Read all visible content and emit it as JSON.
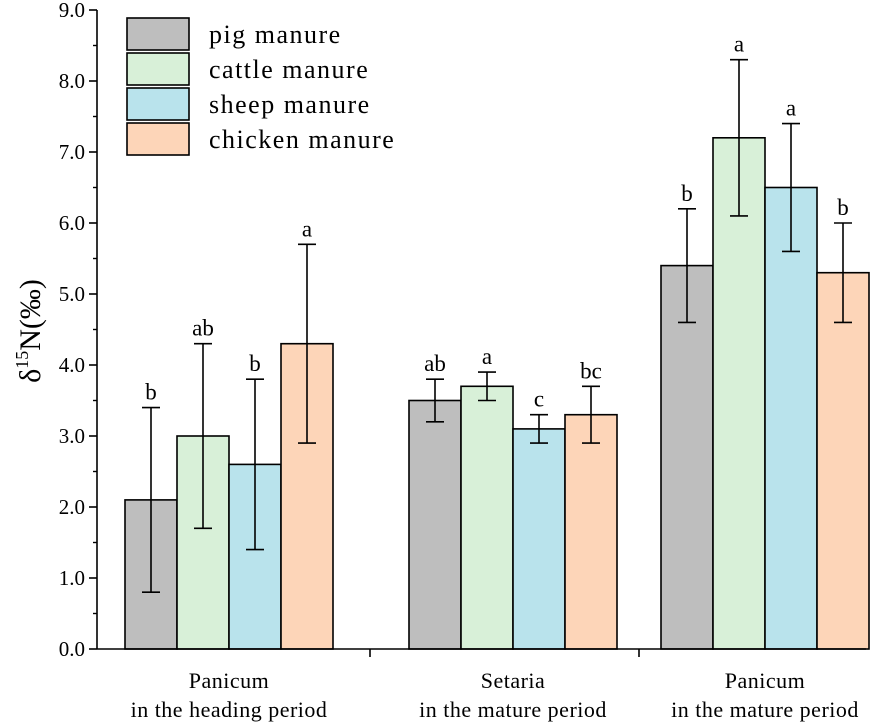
{
  "chart_data": {
    "type": "bar",
    "ylabel_main": "δ",
    "ylabel_sup": "15",
    "ylabel_rest": "N(‰)",
    "ylim": [
      0,
      9
    ],
    "yticks": [
      "0.0",
      "1.0",
      "2.0",
      "3.0",
      "4.0",
      "5.0",
      "6.0",
      "7.0",
      "8.0",
      "9.0"
    ],
    "grid": false,
    "legend_position": "top-left",
    "categories": [
      {
        "line1": "Panicum",
        "line2": "in the heading period"
      },
      {
        "line1": "Setaria",
        "line2": "in the mature period"
      },
      {
        "line1": "Panicum",
        "line2": "in the mature period"
      }
    ],
    "series": [
      {
        "name": "pig manure",
        "color": "#bebebe",
        "values": [
          2.1,
          3.5,
          5.4
        ],
        "errors": [
          1.3,
          0.3,
          0.8
        ],
        "letters": [
          "b",
          "ab",
          "b"
        ]
      },
      {
        "name": "cattle manure",
        "color": "#d8f0d8",
        "values": [
          3.0,
          3.7,
          7.2
        ],
        "errors": [
          1.3,
          0.2,
          1.1
        ],
        "letters": [
          "ab",
          "a",
          "a"
        ]
      },
      {
        "name": "sheep manure",
        "color": "#b9e3ec",
        "values": [
          2.6,
          3.1,
          6.5
        ],
        "errors": [
          1.2,
          0.2,
          0.9
        ],
        "letters": [
          "b",
          "c",
          "a"
        ]
      },
      {
        "name": "chicken manure",
        "color": "#fdd5b8",
        "values": [
          4.3,
          3.3,
          5.3
        ],
        "errors": [
          1.4,
          0.4,
          0.7
        ],
        "letters": [
          "a",
          "bc",
          "b"
        ]
      }
    ]
  }
}
